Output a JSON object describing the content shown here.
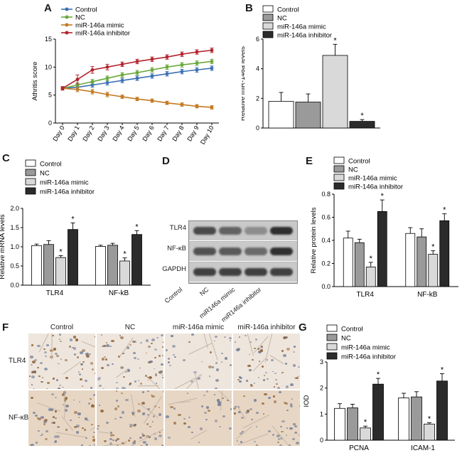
{
  "panels": {
    "A": "A",
    "B": "B",
    "C": "C",
    "D": "D",
    "E": "E",
    "F": "F",
    "G": "G"
  },
  "colors": {
    "control": "#ffffff",
    "nc": "#9a9a9a",
    "mimic": "#d9d9d9",
    "inhibitor": "#2b2b2b",
    "line_control": "#3a6fb3",
    "line_nc": "#6aa83a",
    "line_mimic": "#c47a22",
    "line_inhibitor": "#b3222c"
  },
  "chart_data": [
    {
      "id": "A",
      "type": "line",
      "ylabel": "Athritis score",
      "xlabel": "",
      "ylim": [
        0,
        15
      ],
      "yticks": [
        0,
        5,
        10,
        15
      ],
      "categories": [
        "Day 0",
        "Day 1",
        "Day 2",
        "Day 3",
        "Day 4",
        "Day 5",
        "Day 6",
        "Day 7",
        "Day 8",
        "Day 9",
        "Day 10"
      ],
      "series": [
        {
          "name": "Control",
          "values": [
            6.2,
            6.4,
            6.8,
            7.2,
            7.6,
            8.0,
            8.4,
            8.8,
            9.2,
            9.5,
            9.8
          ]
        },
        {
          "name": "NC",
          "values": [
            6.2,
            6.8,
            7.4,
            8.0,
            8.6,
            9.0,
            9.5,
            10.0,
            10.4,
            10.7,
            11.0
          ]
        },
        {
          "name": "miR-146a mimic",
          "values": [
            6.2,
            6.0,
            5.6,
            5.1,
            4.7,
            4.3,
            4.0,
            3.6,
            3.3,
            3.0,
            2.8
          ]
        },
        {
          "name": "miR-146a inhibitor",
          "values": [
            6.2,
            7.8,
            9.5,
            10.0,
            10.5,
            11.0,
            11.4,
            11.8,
            12.3,
            12.7,
            13.0
          ]
        }
      ],
      "errors": [
        [
          0.3,
          0.4,
          0.4,
          0.4,
          0.4,
          0.4,
          0.4,
          0.4,
          0.4,
          0.4,
          0.4
        ],
        [
          0.3,
          0.4,
          0.4,
          0.4,
          0.4,
          0.4,
          0.4,
          0.4,
          0.4,
          0.4,
          0.4
        ],
        [
          0.3,
          0.4,
          0.4,
          0.4,
          0.3,
          0.3,
          0.3,
          0.3,
          0.3,
          0.3,
          0.3
        ],
        [
          0.3,
          0.8,
          0.6,
          0.5,
          0.4,
          0.4,
          0.4,
          0.4,
          0.4,
          0.4,
          0.4
        ]
      ],
      "legend": "top-left"
    },
    {
      "id": "B",
      "type": "bar",
      "ylabel": "Relative miR-146a levels",
      "ylim": [
        0,
        6
      ],
      "yticks": [
        0,
        2,
        4,
        6
      ],
      "categories": [
        ""
      ],
      "series": [
        {
          "name": "Control",
          "values": [
            1.8
          ],
          "errors": [
            0.6
          ]
        },
        {
          "name": "NC",
          "values": [
            1.75
          ],
          "errors": [
            0.55
          ]
        },
        {
          "name": "miR-146a mimic",
          "values": [
            4.9
          ],
          "errors": [
            0.75
          ],
          "star": "*"
        },
        {
          "name": "miR-146a inhibitor",
          "values": [
            0.45
          ],
          "errors": [
            0.12
          ],
          "star": "*"
        }
      ],
      "legend": "top-left"
    },
    {
      "id": "C",
      "type": "bar",
      "ylabel": "Relative mRNA levels",
      "ylim": [
        0,
        2.0
      ],
      "yticks": [
        0.0,
        0.5,
        1.0,
        1.5,
        2.0
      ],
      "categories": [
        "TLR4",
        "NF-kB"
      ],
      "series": [
        {
          "name": "Control",
          "values": [
            1.03,
            1.01
          ],
          "errors": [
            0.04,
            0.03
          ]
        },
        {
          "name": "NC",
          "values": [
            1.06,
            1.04
          ],
          "errors": [
            0.1,
            0.05
          ]
        },
        {
          "name": "miR-146a mimic",
          "values": [
            0.72,
            0.63
          ],
          "errors": [
            0.05,
            0.08
          ],
          "star": "*"
        },
        {
          "name": "miR-146a inhibitor",
          "values": [
            1.45,
            1.32
          ],
          "errors": [
            0.17,
            0.1
          ],
          "star": "*"
        }
      ],
      "legend": "top-left"
    },
    {
      "id": "E",
      "type": "bar",
      "ylabel": "Relative protein levels",
      "ylim": [
        0,
        0.8
      ],
      "yticks": [
        0.0,
        0.2,
        0.4,
        0.6,
        0.8
      ],
      "categories": [
        "TLR4",
        "NF-kB"
      ],
      "series": [
        {
          "name": "Control",
          "values": [
            0.42,
            0.46
          ],
          "errors": [
            0.06,
            0.05
          ]
        },
        {
          "name": "NC",
          "values": [
            0.38,
            0.43
          ],
          "errors": [
            0.03,
            0.07
          ]
        },
        {
          "name": "miR-146a mimic",
          "values": [
            0.17,
            0.28
          ],
          "errors": [
            0.04,
            0.03
          ],
          "star": "*"
        },
        {
          "name": "miR-146a inhibitor",
          "values": [
            0.65,
            0.57
          ],
          "errors": [
            0.1,
            0.06
          ],
          "star": "*"
        }
      ],
      "legend": "top-left"
    },
    {
      "id": "G",
      "type": "bar",
      "ylabel": "IOD",
      "ylim": [
        0,
        3
      ],
      "yticks": [
        0,
        1,
        2,
        3
      ],
      "categories": [
        "PCNA",
        "ICAM-1"
      ],
      "series": [
        {
          "name": "Control",
          "values": [
            1.22,
            1.62
          ],
          "errors": [
            0.18,
            0.18
          ]
        },
        {
          "name": "NC",
          "values": [
            1.24,
            1.66
          ],
          "errors": [
            0.14,
            0.2
          ]
        },
        {
          "name": "miR-146a mimic",
          "values": [
            0.47,
            0.62
          ],
          "errors": [
            0.07,
            0.05
          ],
          "star": "*"
        },
        {
          "name": "miR-146a inhibitor",
          "values": [
            2.15,
            2.27
          ],
          "errors": [
            0.22,
            0.28
          ],
          "star": "*"
        }
      ],
      "legend": "top-left"
    }
  ],
  "blot": {
    "rows": [
      "TLR4",
      "NF-κB",
      "GAPDH"
    ],
    "lanes": [
      "Control",
      "NC",
      "miR146a mimic",
      "miR146a inhibitor"
    ],
    "intensity": [
      [
        0.75,
        0.6,
        0.35,
        0.9
      ],
      [
        0.7,
        0.65,
        0.55,
        0.9
      ],
      [
        0.8,
        0.8,
        0.8,
        0.8
      ]
    ]
  },
  "histology": {
    "columns": [
      "Control",
      "NC",
      "miR-146a mimic",
      "miR-146a inhibitor"
    ],
    "rows": [
      "TLR4",
      "NF-κB"
    ]
  }
}
